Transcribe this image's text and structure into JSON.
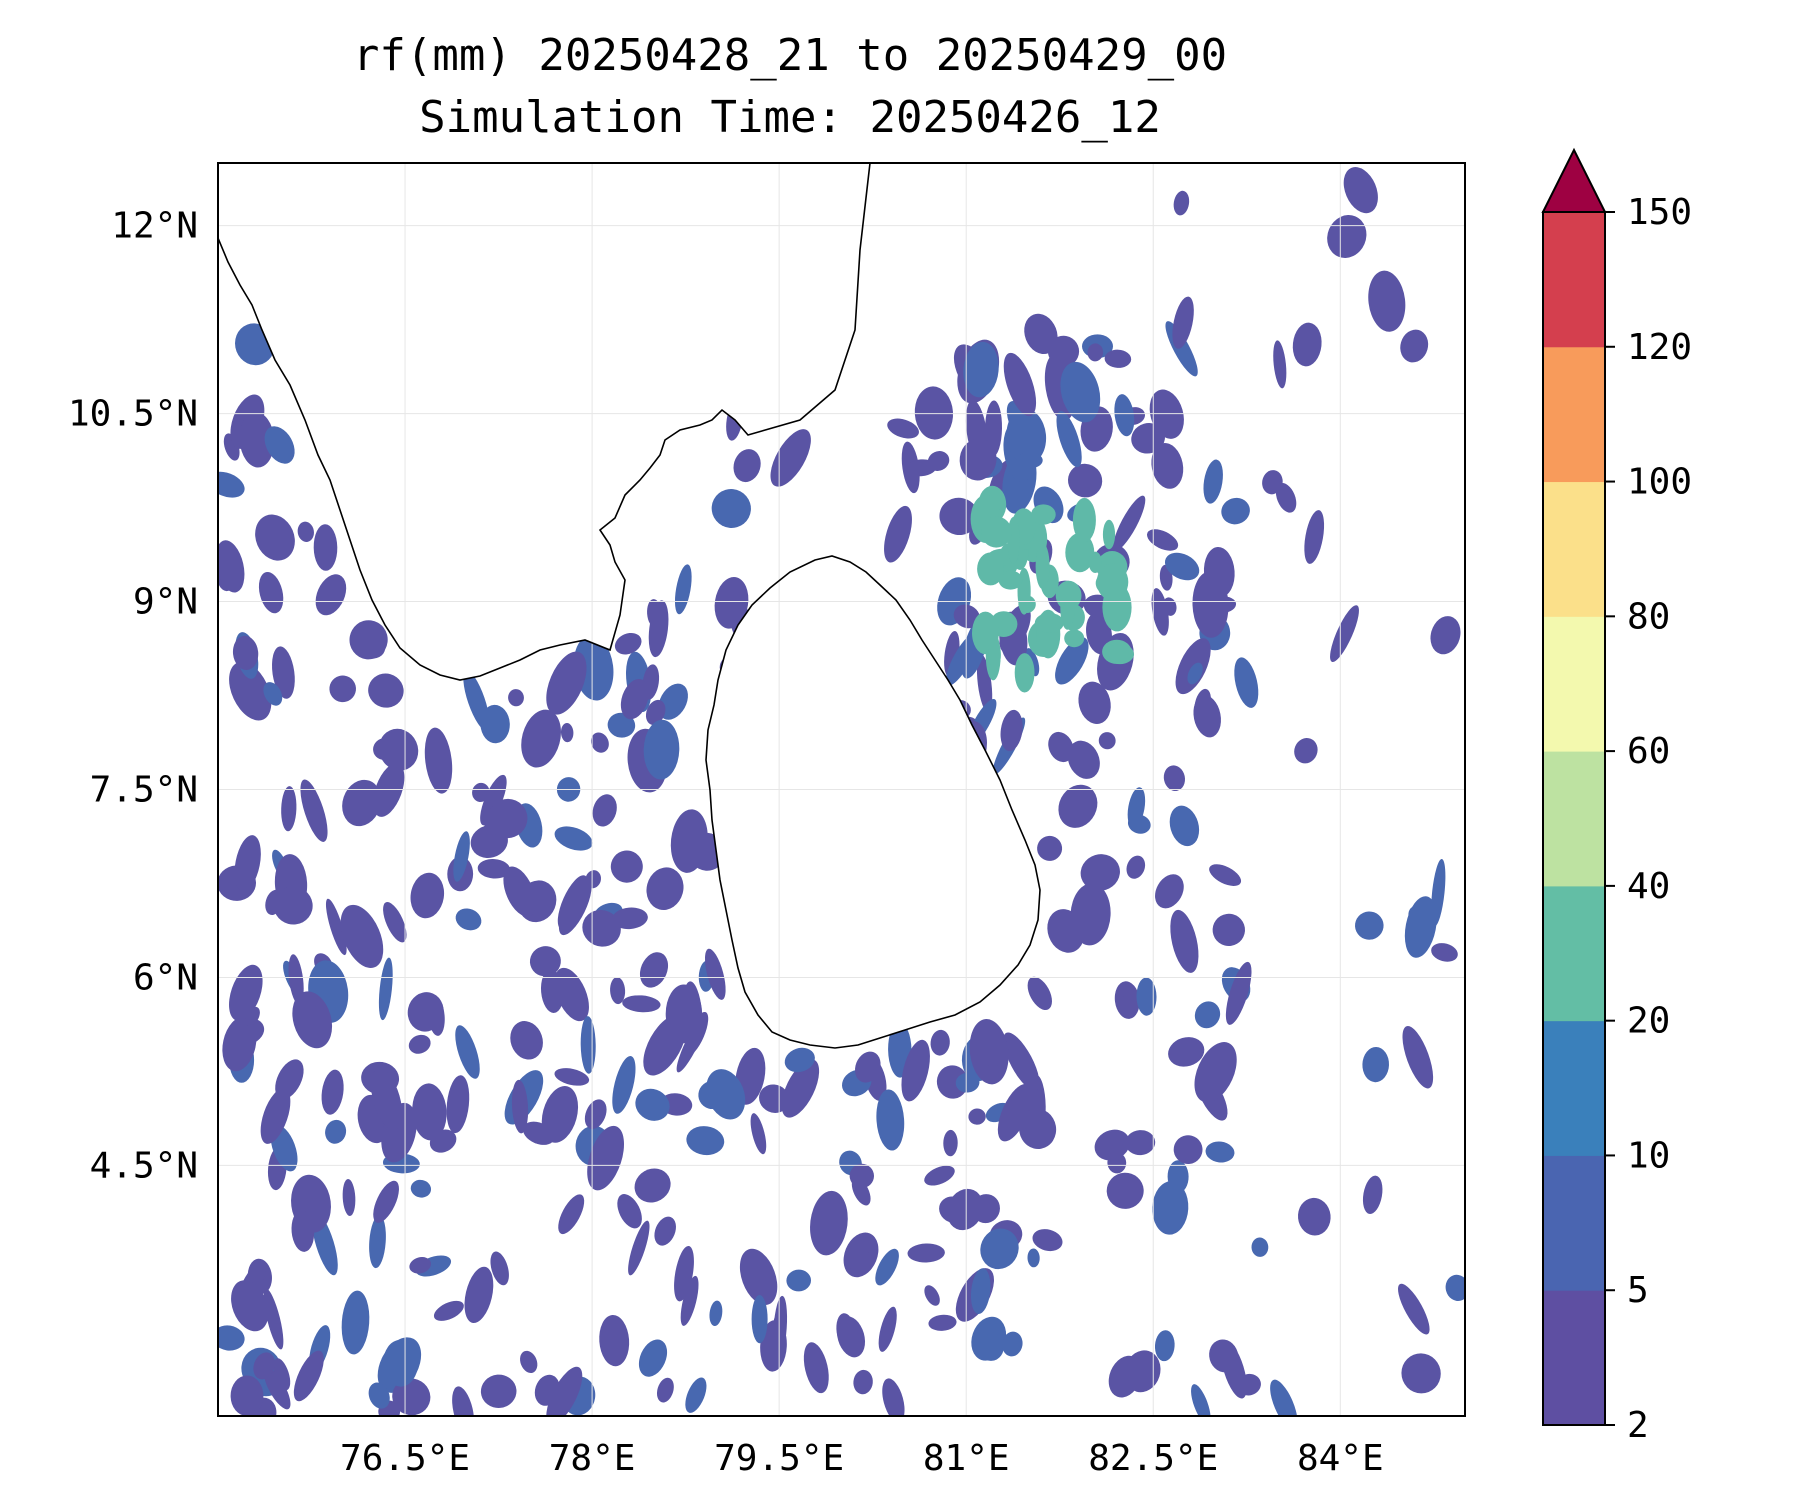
{
  "title": {
    "line1": "rf(mm) 20250428_21 to 20250429_00",
    "line2": "Simulation Time: 20250426_12"
  },
  "map": {
    "lon_range": [
      75.0,
      85.0
    ],
    "lat_range": [
      2.5,
      12.5
    ],
    "lon_ticks": [
      {
        "value": 76.5,
        "label": "76.5°E"
      },
      {
        "value": 78.0,
        "label": "78°E"
      },
      {
        "value": 79.5,
        "label": "79.5°E"
      },
      {
        "value": 81.0,
        "label": "81°E"
      },
      {
        "value": 82.5,
        "label": "82.5°E"
      },
      {
        "value": 84.0,
        "label": "84°E"
      }
    ],
    "lat_ticks": [
      {
        "value": 12.0,
        "label": "12°N"
      },
      {
        "value": 10.5,
        "label": "10.5°N"
      },
      {
        "value": 9.0,
        "label": "9°N"
      },
      {
        "value": 7.5,
        "label": "7.5°N"
      },
      {
        "value": 6.0,
        "label": "6°N"
      },
      {
        "value": 4.5,
        "label": "4.5°N"
      }
    ],
    "gridlines": true
  },
  "colorbar": {
    "levels": [
      2,
      5,
      10,
      20,
      40,
      60,
      80,
      100,
      120,
      150
    ],
    "labels": [
      "2",
      "5",
      "10",
      "20",
      "40",
      "60",
      "80",
      "100",
      "120",
      "150"
    ],
    "colors": [
      "#5e4fa2",
      "#4a65b1",
      "#3a80bb",
      "#63bea5",
      "#bde2a1",
      "#f3f9ae",
      "#fbe08a",
      "#f89b5b",
      "#d43f4e"
    ],
    "extend_color": "#9e0142",
    "extend": "max"
  },
  "rain_color_low": "#5a54a4",
  "rain_color_mid": "#4868b0",
  "rain_color_high": "#5fb9a8",
  "coast_color": "#000000"
}
